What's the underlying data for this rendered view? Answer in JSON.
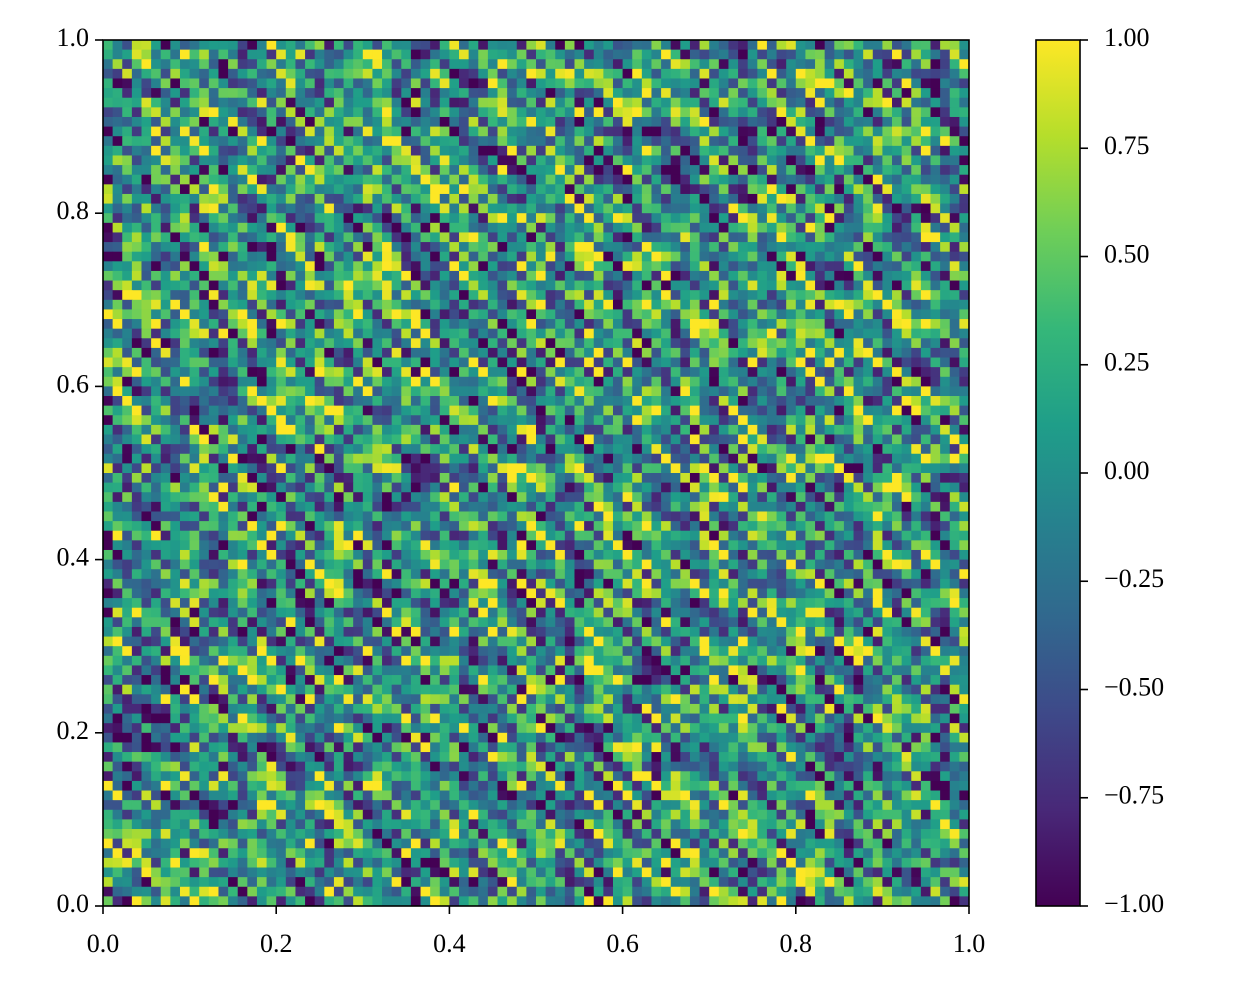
{
  "chart_data": {
    "type": "contour",
    "xlim": [
      0,
      1
    ],
    "ylim": [
      0,
      1
    ],
    "xticks": [
      {
        "value": 0,
        "label": "0.0"
      },
      0.2,
      0.4,
      0.6,
      0.8,
      {
        "value": 1,
        "label": "1.0"
      }
    ],
    "yticks": [
      {
        "value": 0,
        "label": "0.0"
      },
      0.2,
      0.4,
      0.6,
      0.8,
      {
        "value": 1,
        "label": "1.0"
      }
    ],
    "clim": [
      -1,
      1
    ],
    "cticks": [
      {
        "value": -1,
        "label": "−1.00"
      },
      {
        "value": -0.75,
        "label": "−0.75"
      },
      {
        "value": -0.5,
        "label": "−0.50"
      },
      {
        "value": -0.25,
        "label": "−0.25"
      },
      {
        "value": 0,
        "label": "0.00"
      },
      {
        "value": 0.25,
        "label": "0.25"
      },
      {
        "value": 0.5,
        "label": "0.50"
      },
      {
        "value": 0.75,
        "label": "0.75"
      },
      {
        "value": 1,
        "label": "1.00"
      }
    ],
    "colormap": [
      "#440154",
      "#482878",
      "#3e4989",
      "#31688e",
      "#26828e",
      "#1f9e89",
      "#35b779",
      "#6ece58",
      "#b5de2b",
      "#fde725"
    ]
  }
}
